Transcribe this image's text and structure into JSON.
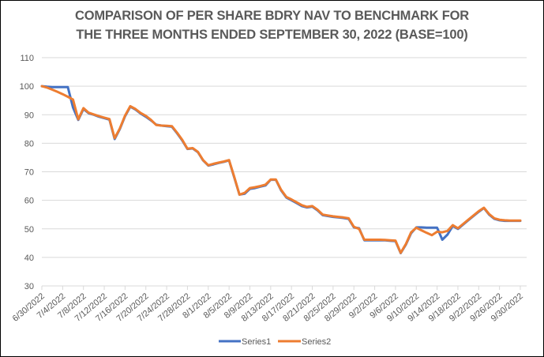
{
  "chart_data": {
    "type": "line",
    "title_lines": [
      "COMPARISON OF PER SHARE BDRY NAV TO BENCHMARK FOR",
      "THE THREE MONTHS ENDED SEPTEMBER 30, 2022 (BASE=100)"
    ],
    "xlabel": "",
    "ylabel": "",
    "ylim": [
      30,
      110
    ],
    "yticks": [
      30,
      40,
      50,
      60,
      70,
      80,
      90,
      100,
      110
    ],
    "x_start": "6/30/2022",
    "x_end": "9/30/2022",
    "xtick_labels": [
      "6/30/2022",
      "7/4/2022",
      "7/8/2022",
      "7/12/2022",
      "7/16/2022",
      "7/20/2022",
      "7/24/2022",
      "7/28/2022",
      "8/1/2022",
      "8/5/2022",
      "8/9/2022",
      "8/13/2022",
      "8/17/2022",
      "8/21/2022",
      "8/25/2022",
      "8/29/2022",
      "9/2/2022",
      "9/6/2022",
      "9/10/2022",
      "9/14/2022",
      "9/18/2022",
      "9/22/2022",
      "9/26/2022",
      "9/30/2022"
    ],
    "grid": true,
    "legend_position": "bottom",
    "x_days": [
      0,
      1,
      2,
      3,
      4,
      5,
      6,
      7,
      8,
      9,
      10,
      11,
      12,
      13,
      14,
      15,
      16,
      17,
      18,
      19,
      20,
      21,
      22,
      23,
      24,
      25,
      26,
      27,
      28,
      29,
      30,
      31,
      32,
      33,
      34,
      35,
      36,
      37,
      38,
      39,
      40,
      41,
      42,
      43,
      44,
      45,
      46,
      47,
      48,
      49,
      50,
      51,
      52,
      53,
      54,
      55,
      56,
      57,
      58,
      59,
      60,
      61,
      62,
      63,
      64,
      65,
      66,
      67,
      68,
      69,
      70,
      71,
      72,
      73,
      74,
      75,
      76,
      77,
      78,
      79,
      80,
      81,
      82,
      83,
      84,
      85,
      86,
      87,
      88,
      89,
      90,
      91,
      92
    ],
    "series": [
      {
        "name": "Series1",
        "color": "#4472C4",
        "values": [
          100,
          99.8,
          99.7,
          99.7,
          99.7,
          99.7,
          92.5,
          88.2,
          92.0,
          90.5,
          90.0,
          89.3,
          88.8,
          88.3,
          81.5,
          85.0,
          89.5,
          92.8,
          91.8,
          90.4,
          89.3,
          88.0,
          86.5,
          86.2,
          86.0,
          85.8,
          83.5,
          81.0,
          78.0,
          78.2,
          76.9,
          74.0,
          72.2,
          72.6,
          73.1,
          73.5,
          74.0,
          68.0,
          62.0,
          62.3,
          64.0,
          64.3,
          64.8,
          65.2,
          67.2,
          67.2,
          63.5,
          61.0,
          60.0,
          59.0,
          58.0,
          57.5,
          57.8,
          56.5,
          54.8,
          54.5,
          54.2,
          54.0,
          53.8,
          53.5,
          50.5,
          50.2,
          46.0,
          46.0,
          46.0,
          46.0,
          46.0,
          45.8,
          45.7,
          41.5,
          44.5,
          48.5,
          50.5,
          50.5,
          50.4,
          50.4,
          50.4,
          46.2,
          48.0,
          51.0,
          50.0,
          51.5,
          53.0,
          54.5,
          56.0,
          57.3,
          55.0,
          53.5,
          53.0,
          52.8,
          52.8,
          52.8,
          52.8
        ]
      },
      {
        "name": "Series2",
        "color": "#ED7D31",
        "values": [
          100,
          99.5,
          98.8,
          98.0,
          97.2,
          96.3,
          95.3,
          88.4,
          92.3,
          90.7,
          90.1,
          89.5,
          89.0,
          88.5,
          81.8,
          85.2,
          89.7,
          93.0,
          92.0,
          90.6,
          89.6,
          88.2,
          86.4,
          86.2,
          86.1,
          86.0,
          83.7,
          81.2,
          78.1,
          78.3,
          77.0,
          74.1,
          72.3,
          72.8,
          73.2,
          73.6,
          74.1,
          68.2,
          62.0,
          62.6,
          64.3,
          64.6,
          65.0,
          65.5,
          67.3,
          67.3,
          63.7,
          61.2,
          60.3,
          59.3,
          58.3,
          57.7,
          58.0,
          56.7,
          55.0,
          54.7,
          54.4,
          54.2,
          54.0,
          53.7,
          50.7,
          50.0,
          46.2,
          46.2,
          46.2,
          46.2,
          46.1,
          46.0,
          45.9,
          41.6,
          44.7,
          48.8,
          50.4,
          49.5,
          48.6,
          47.8,
          49.0,
          48.8,
          49.3,
          51.3,
          50.2,
          51.7,
          53.2,
          54.7,
          56.2,
          57.4,
          55.2,
          53.7,
          53.2,
          53.0,
          52.9,
          52.9,
          52.9
        ]
      }
    ]
  }
}
